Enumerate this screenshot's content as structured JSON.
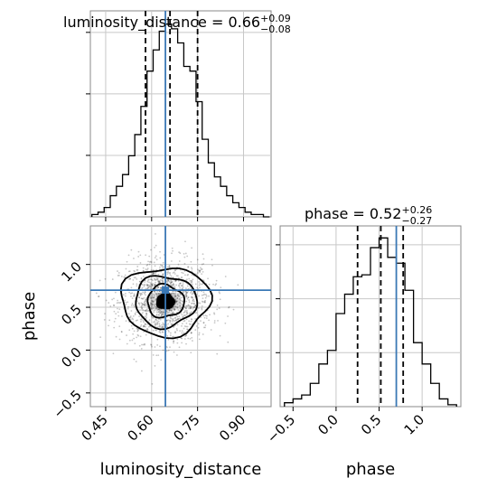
{
  "chart_data": [
    {
      "type": "histogram",
      "panel": "top-left",
      "title": "luminosity_distance = 0.66",
      "title_value": {
        "median": 0.66,
        "plus": "+0.09",
        "minus": "−0.08"
      },
      "x_range": [
        0.4,
        0.99
      ],
      "bin_edges": [
        0.405,
        0.425,
        0.445,
        0.465,
        0.485,
        0.505,
        0.525,
        0.545,
        0.565,
        0.585,
        0.605,
        0.625,
        0.645,
        0.665,
        0.685,
        0.705,
        0.725,
        0.745,
        0.765,
        0.785,
        0.805,
        0.825,
        0.845,
        0.865,
        0.885,
        0.905,
        0.925,
        0.945,
        0.965,
        0.985
      ],
      "counts": [
        1,
        2,
        4,
        9,
        13,
        18,
        26,
        35,
        47,
        62,
        71,
        79,
        82,
        80,
        74,
        64,
        62,
        49,
        33,
        23,
        17,
        13,
        9,
        6,
        4,
        2,
        1,
        1,
        0
      ],
      "quantiles": [
        0.58,
        0.66,
        0.75
      ],
      "truth": 0.645,
      "grid": true
    },
    {
      "type": "histogram",
      "panel": "bottom-right",
      "title": "phase = 0.52",
      "title_value": {
        "median": 0.52,
        "plus": "+0.26",
        "minus": "−0.27"
      },
      "x_range": [
        -0.65,
        1.45
      ],
      "xticks": [
        "−0.5",
        "0.0",
        "0.5",
        "1.0"
      ],
      "xtick_values": [
        -0.5,
        0.0,
        0.5,
        1.0
      ],
      "xlabel": "phase",
      "bin_edges": [
        -0.6,
        -0.5,
        -0.4,
        -0.3,
        -0.2,
        -0.1,
        0.0,
        0.1,
        0.2,
        0.3,
        0.4,
        0.5,
        0.6,
        0.7,
        0.8,
        0.9,
        1.0,
        1.1,
        1.2,
        1.3,
        1.4
      ],
      "counts": [
        2,
        4,
        6,
        12,
        22,
        29,
        48,
        58,
        67,
        68,
        82,
        87,
        77,
        74,
        60,
        33,
        22,
        12,
        4,
        1
      ],
      "quantiles": [
        0.25,
        0.52,
        0.78
      ],
      "truth": 0.7,
      "grid": true
    },
    {
      "type": "2d-histogram-contour",
      "panel": "bottom-left",
      "x_range": [
        0.4,
        0.99
      ],
      "y_range": [
        -0.66,
        1.45
      ],
      "xticks": [
        "0.45",
        "0.60",
        "0.75",
        "0.90"
      ],
      "xtick_values": [
        0.45,
        0.6,
        0.75,
        0.9
      ],
      "yticks": [
        "−0.5",
        "0.0",
        "0.5",
        "1.0"
      ],
      "ytick_values": [
        -0.5,
        0.0,
        0.5,
        1.0
      ],
      "xlabel": "luminosity_distance",
      "ylabel": "phase",
      "center": [
        0.645,
        0.57
      ],
      "spread": [
        0.075,
        0.24
      ],
      "truth": [
        0.645,
        0.7
      ],
      "contour_levels": [
        {
          "rx": 0.145,
          "ry": 0.4
        },
        {
          "rx": 0.1,
          "ry": 0.3
        },
        {
          "rx": 0.06,
          "ry": 0.19
        },
        {
          "rx": 0.028,
          "ry": 0.09
        }
      ],
      "grid": true
    }
  ],
  "colors": {
    "truth": "#3a78b5",
    "line": "#000000",
    "grid": "#c8c8c8",
    "frame": "#888888"
  }
}
